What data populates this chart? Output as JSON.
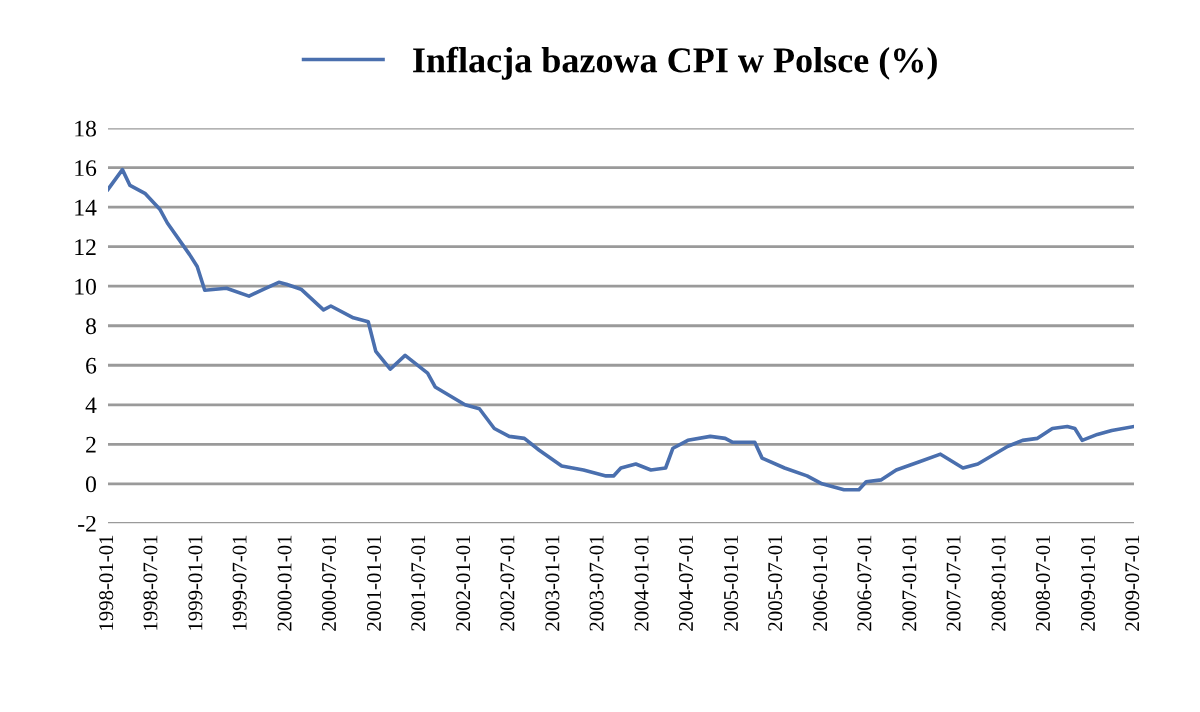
{
  "chart_data": {
    "type": "line",
    "x": [
      "1998-01",
      "1998-03",
      "1998-04",
      "1998-06",
      "1998-08",
      "1998-09",
      "1998-12",
      "1999-01",
      "1999-02",
      "1999-05",
      "1999-08",
      "1999-10",
      "1999-12",
      "2000-01",
      "2000-03",
      "2000-06",
      "2000-07",
      "2000-10",
      "2000-12",
      "2001-01",
      "2001-03",
      "2001-05",
      "2001-08",
      "2001-09",
      "2002-01",
      "2002-03",
      "2002-05",
      "2002-07",
      "2002-09",
      "2002-11",
      "2003-02",
      "2003-05",
      "2003-08",
      "2003-09",
      "2003-10",
      "2003-12",
      "2004-02",
      "2004-04",
      "2004-05",
      "2004-07",
      "2004-10",
      "2004-12",
      "2005-01",
      "2005-04",
      "2005-05",
      "2005-08",
      "2005-11",
      "2006-01",
      "2006-04",
      "2006-06",
      "2006-07",
      "2006-09",
      "2006-11",
      "2007-02",
      "2007-05",
      "2007-08",
      "2007-10",
      "2008-02",
      "2008-04",
      "2008-06",
      "2008-08",
      "2008-10",
      "2008-11",
      "2008-12",
      "2009-02",
      "2009-04",
      "2009-07"
    ],
    "series": [
      {
        "name": "Inflacja bazowa CPI w Polsce (%)",
        "color": "#4a6fae",
        "values": [
          14.9,
          15.9,
          15.1,
          14.7,
          13.9,
          13.2,
          11.6,
          11.0,
          9.8,
          9.9,
          9.5,
          9.85,
          10.2,
          10.1,
          9.85,
          8.8,
          9.0,
          8.4,
          8.2,
          6.7,
          5.8,
          6.5,
          5.6,
          4.9,
          4.0,
          3.8,
          2.8,
          2.4,
          2.3,
          1.7,
          0.9,
          0.7,
          0.4,
          0.4,
          0.8,
          1.0,
          0.7,
          0.8,
          1.8,
          2.2,
          2.4,
          2.3,
          2.1,
          2.1,
          1.3,
          0.8,
          0.4,
          0.0,
          -0.3,
          -0.3,
          0.1,
          0.2,
          0.7,
          1.1,
          1.5,
          0.8,
          1.0,
          1.9,
          2.2,
          2.3,
          2.8,
          2.9,
          2.8,
          2.2,
          2.5,
          2.7,
          2.9
        ]
      }
    ],
    "xlim": [
      "1998-01-01",
      "2009-07-01"
    ],
    "xticks": [
      {
        "value": "1998-01-01",
        "label": "1998-01-01"
      },
      {
        "value": "1998-07-01",
        "label": "1998-07-01"
      },
      {
        "value": "1999-01-01",
        "label": "1999-01-01"
      },
      {
        "value": "1999-07-01",
        "label": "1999-07-01"
      },
      {
        "value": "2000-01-01",
        "label": "2000-01-01"
      },
      {
        "value": "2000-07-01",
        "label": "2000-07-01"
      },
      {
        "value": "2001-01-01",
        "label": "2001-01-01"
      },
      {
        "value": "2001-07-01",
        "label": "2001-07-01"
      },
      {
        "value": "2002-01-01",
        "label": "2002-01-01"
      },
      {
        "value": "2002-07-01",
        "label": "2002-07-01"
      },
      {
        "value": "2003-01-01",
        "label": "2003-01-01"
      },
      {
        "value": "2003-07-01",
        "label": "2003-07-01"
      },
      {
        "value": "2004-01-01",
        "label": "2004-01-01"
      },
      {
        "value": "2004-07-01",
        "label": "2004-07-01"
      },
      {
        "value": "2005-01-01",
        "label": "2005-01-01"
      },
      {
        "value": "2005-07-01",
        "label": "2005-07-01"
      },
      {
        "value": "2006-01-01",
        "label": "2006-01-01"
      },
      {
        "value": "2006-07-01",
        "label": "2006-07-01"
      },
      {
        "value": "2007-01-01",
        "label": "2007-01-01"
      },
      {
        "value": "2007-07-01",
        "label": "2007-07-01"
      },
      {
        "value": "2008-01-01",
        "label": "2008-01-01"
      },
      {
        "value": "2008-07-01",
        "label": "2008-07-01"
      },
      {
        "value": "2009-01-01",
        "label": "2009-01-01"
      },
      {
        "value": "2009-07-01",
        "label": "2009-07-01"
      }
    ],
    "ylim": [
      -2,
      18
    ],
    "yticks": [
      -2,
      0,
      2,
      4,
      6,
      8,
      10,
      12,
      14,
      16,
      18
    ],
    "grid": "y",
    "legend": "top",
    "line_style": "solid",
    "marker": "none"
  }
}
